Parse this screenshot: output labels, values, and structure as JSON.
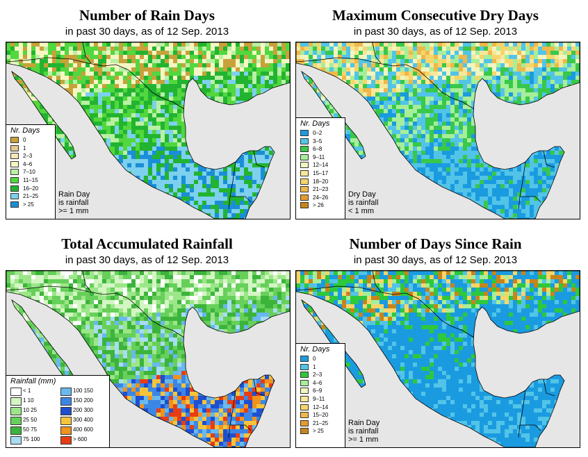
{
  "colors": {
    "water": "#e6e6e6",
    "border": "#000000"
  },
  "panels": [
    {
      "title": "Number of Rain Days",
      "subtitle": "in past 30 days, as of  12 Sep. 2013",
      "legend_title": "Nr. Days",
      "legend": [
        {
          "label": "0",
          "color": "#c9a13a"
        },
        {
          "label": "1",
          "color": "#e3c98e"
        },
        {
          "label": "2–3",
          "color": "#f3e6b8"
        },
        {
          "label": "4–6",
          "color": "#f6f6c4"
        },
        {
          "label": "7–10",
          "color": "#b9f0a4"
        },
        {
          "label": "11–15",
          "color": "#52d83e"
        },
        {
          "label": "16–20",
          "color": "#22b430"
        },
        {
          "label": "21–25",
          "color": "#7dd0ee"
        },
        {
          "label": "> 25",
          "color": "#1a8ed6"
        }
      ],
      "note": [
        "Rain Day",
        "is rainfall",
        ">= 1 mm"
      ],
      "mix": [
        {
          "north": [
            0,
            0,
            3,
            3,
            4,
            5,
            5,
            6
          ],
          "mid": [
            4,
            5,
            5,
            6,
            6,
            6,
            7
          ],
          "south": [
            6,
            6,
            7,
            7,
            7,
            8,
            8
          ]
        }
      ]
    },
    {
      "title": "Maximum Consecutive Dry Days",
      "subtitle": "in past 30 days, as of  12 Sep. 2013",
      "legend_title": "Nr. Days",
      "legend": [
        {
          "label": "0–2",
          "color": "#1a9be0"
        },
        {
          "label": "3–5",
          "color": "#52c4e8"
        },
        {
          "label": "6–8",
          "color": "#38c84a"
        },
        {
          "label": "9–11",
          "color": "#a6ee9a"
        },
        {
          "label": "12–14",
          "color": "#f2f5c0"
        },
        {
          "label": "15–17",
          "color": "#f8e79a"
        },
        {
          "label": "18–20",
          "color": "#f6d66a"
        },
        {
          "label": "21–23",
          "color": "#efb84a"
        },
        {
          "label": "24–26",
          "color": "#e49a2c"
        },
        {
          "label": "> 26",
          "color": "#c8841c"
        }
      ],
      "note": [
        "Dry Day",
        "is rainfall",
        "< 1 mm"
      ],
      "mix": [
        {
          "north": [
            1,
            1,
            2,
            3,
            4,
            5,
            6,
            7
          ],
          "mid": [
            1,
            1,
            2,
            2,
            3,
            3,
            0
          ],
          "south": [
            0,
            0,
            1,
            1,
            0,
            1,
            2
          ]
        }
      ]
    },
    {
      "title": "Total Accumulated Rainfall",
      "subtitle": "in past 30 days, as of  12 Sep. 2013",
      "legend_title": "Rainfall (mm)",
      "legend": [
        {
          "label": "< 1",
          "color": "#ffffff"
        },
        {
          "label": "1    10",
          "color": "#d4f5c4"
        },
        {
          "label": "10    25",
          "color": "#9ce68a"
        },
        {
          "label": "25    50",
          "color": "#66d05a"
        },
        {
          "label": "50    75",
          "color": "#3cb43c"
        },
        {
          "label": "75    100",
          "color": "#a8dcf2"
        },
        {
          "label": "100    150",
          "color": "#6ab8ee"
        },
        {
          "label": "150    200",
          "color": "#3c86e6"
        },
        {
          "label": "200    300",
          "color": "#1e4fd0"
        },
        {
          "label": "300    400",
          "color": "#f6c43a"
        },
        {
          "label": "400    600",
          "color": "#f0921e"
        },
        {
          "label": "> 600",
          "color": "#e83c14"
        }
      ],
      "note": [],
      "mix": [
        {
          "north": [
            0,
            1,
            1,
            2,
            2,
            3,
            3,
            4
          ],
          "mid": [
            2,
            3,
            3,
            4,
            4,
            6,
            5
          ],
          "south": [
            7,
            8,
            9,
            10,
            6,
            7,
            11
          ]
        }
      ]
    },
    {
      "title": "Number of Days Since Rain",
      "subtitle": "in past 30 days, as of  12 Sep. 2013",
      "legend_title": "Nr. Days",
      "legend": [
        {
          "label": "0",
          "color": "#1a9be0"
        },
        {
          "label": "1",
          "color": "#52c4e8"
        },
        {
          "label": "2–3",
          "color": "#2ec83c"
        },
        {
          "label": "4–6",
          "color": "#a6ee9a"
        },
        {
          "label": "6–9",
          "color": "#f2f5c0"
        },
        {
          "label": "9–11",
          "color": "#f8e79a"
        },
        {
          "label": "12–14",
          "color": "#f6d66a"
        },
        {
          "label": "15–20",
          "color": "#efb84a"
        },
        {
          "label": "21–25",
          "color": "#e49a2c"
        },
        {
          "label": "> 25",
          "color": "#c8841c"
        }
      ],
      "note": [
        "Rain Day",
        "is rainfall",
        ">= 1 mm"
      ],
      "mix": [
        {
          "north": [
            2,
            2,
            1,
            0,
            0,
            3,
            6,
            9
          ],
          "mid": [
            0,
            0,
            0,
            1,
            2,
            0,
            0
          ],
          "south": [
            0,
            0,
            0,
            1,
            0,
            0,
            1
          ]
        }
      ]
    }
  ]
}
